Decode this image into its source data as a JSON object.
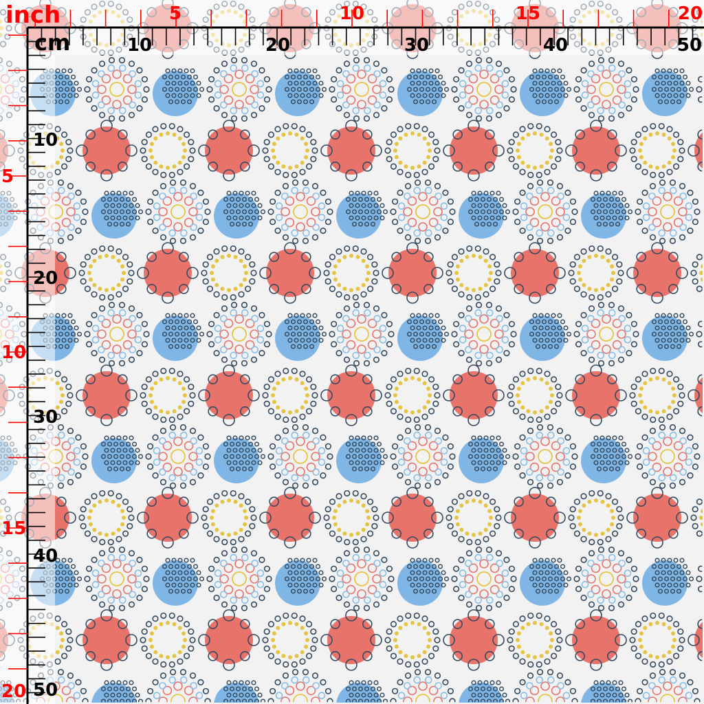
{
  "rulers": {
    "inch_unit_label": "inch",
    "cm_unit_label": "cm",
    "inch_numbers_top": [
      "5",
      "10",
      "15",
      "20"
    ],
    "inch_numbers_left": [
      "5",
      "10",
      "15",
      "20"
    ],
    "cm_numbers_top": [
      "10",
      "20",
      "30",
      "40",
      "50"
    ],
    "cm_numbers_left": [
      "10",
      "20",
      "30",
      "40",
      "50"
    ]
  },
  "colors": {
    "inch_ruler": "#ff0000",
    "cm_ruler": "#000000",
    "fabric_background": "#f2f2f2",
    "red_dot": "#e8736b",
    "blue_dot": "#7fb6e6",
    "dark_outline": "#34495e",
    "yellow": "#e6c443",
    "light_blue_outline": "#86bde8"
  },
  "pattern": {
    "motifs": [
      "mandala",
      "blue-dotted-circle",
      "red-circle",
      "yellow-ring"
    ]
  }
}
